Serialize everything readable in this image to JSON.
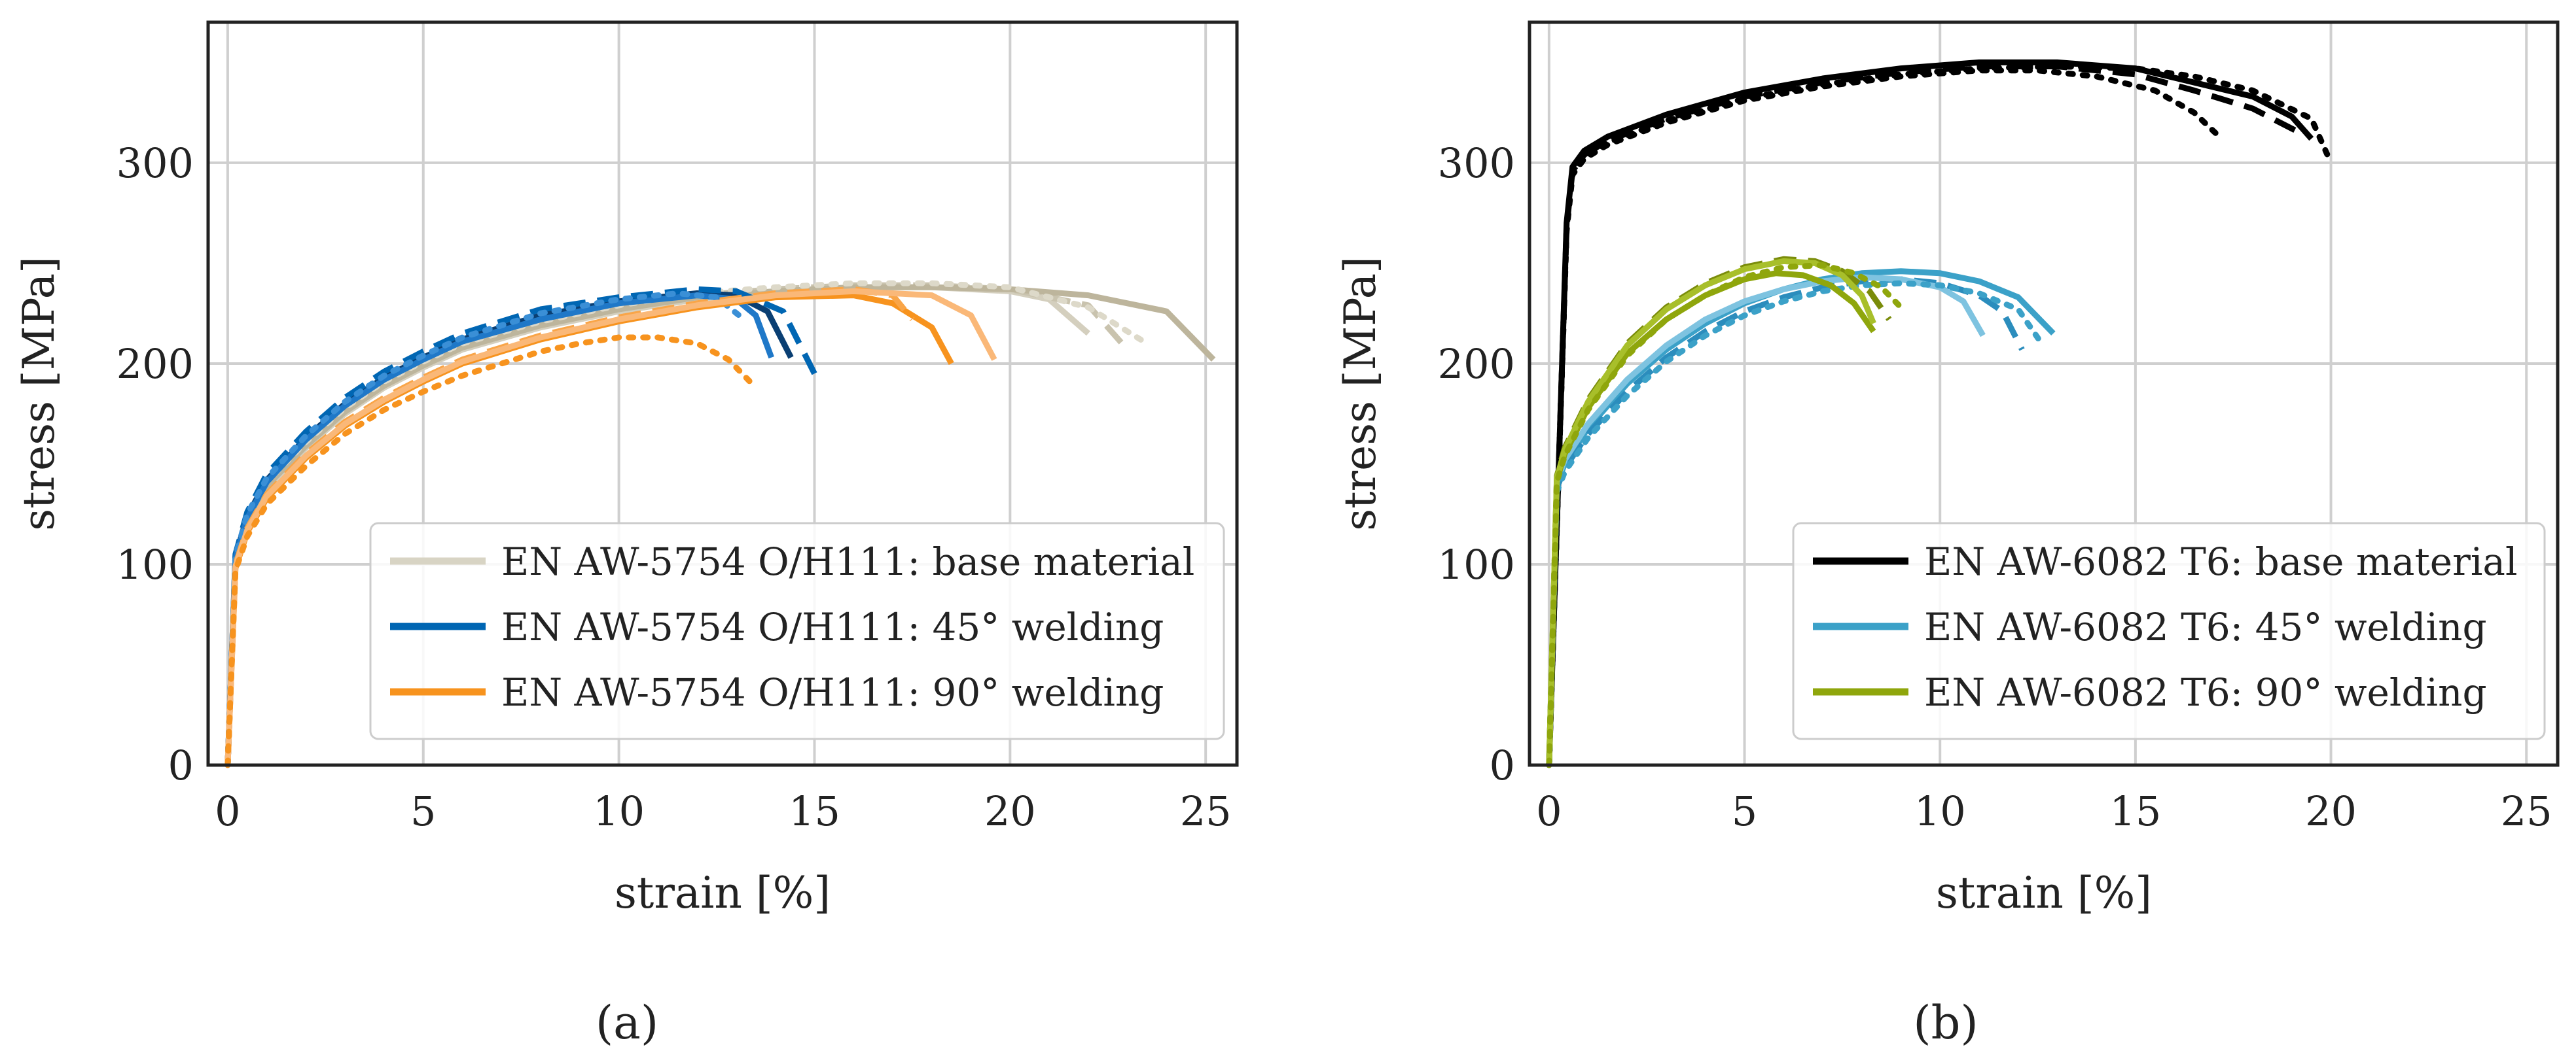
{
  "chart_data": [
    {
      "type": "line",
      "panel_caption": "(a)",
      "xlabel": "strain [%]",
      "ylabel": "stress [MPa]",
      "xlim": [
        -0.5,
        25.8
      ],
      "ylim": [
        0,
        370
      ],
      "xticks": [
        0,
        5,
        10,
        15,
        20,
        25
      ],
      "yticks": [
        0,
        100,
        200,
        300
      ],
      "grid": true,
      "legend_position": "bottom-right",
      "legend": [
        {
          "label": "EN AW-5754 O/H111: base material",
          "color": "#d8d4c4"
        },
        {
          "label": "EN AW-5754 O/H111: 45° welding",
          "color": "#0066b3"
        },
        {
          "label": "EN AW-5754 O/H111: 90° welding",
          "color": "#f7931e"
        }
      ],
      "series": [
        {
          "name": "base material A",
          "color": "#d4cfbe",
          "dash": "solid",
          "x": [
            0,
            0.2,
            0.5,
            1,
            2,
            3,
            4,
            5,
            6,
            8,
            10,
            12,
            14,
            16,
            18,
            20,
            21,
            22
          ],
          "y": [
            0,
            100,
            120,
            138,
            158,
            175,
            188,
            198,
            207,
            218,
            226,
            232,
            236,
            238,
            238,
            236,
            232,
            215
          ]
        },
        {
          "name": "base material B",
          "color": "#c9c3ae",
          "dash": "dashed",
          "x": [
            0,
            0.2,
            0.5,
            1,
            2,
            3,
            4,
            5,
            6,
            8,
            10,
            12,
            14,
            16,
            18,
            20,
            22,
            23
          ],
          "y": [
            0,
            102,
            122,
            140,
            160,
            177,
            190,
            200,
            209,
            220,
            228,
            234,
            237,
            239,
            239,
            237,
            229,
            207
          ]
        },
        {
          "name": "base material C",
          "color": "#bdb59c",
          "dash": "solid",
          "x": [
            0,
            0.2,
            0.5,
            1,
            2,
            3,
            4,
            5,
            6,
            8,
            10,
            12,
            14,
            16,
            18,
            20,
            22,
            24,
            25.2
          ],
          "y": [
            0,
            101,
            121,
            139,
            159,
            176,
            189,
            199,
            208,
            219,
            227,
            233,
            236,
            238,
            238,
            237,
            234,
            226,
            202
          ]
        },
        {
          "name": "base material D",
          "color": "#ddd9c9",
          "dash": "dotted",
          "x": [
            0,
            0.2,
            0.5,
            1,
            2,
            3,
            4,
            5,
            6,
            8,
            10,
            12,
            14,
            16,
            18,
            20,
            22,
            23.5
          ],
          "y": [
            0,
            103,
            123,
            141,
            161,
            178,
            191,
            201,
            210,
            221,
            229,
            235,
            238,
            240,
            240,
            238,
            228,
            210
          ]
        },
        {
          "name": "45 welding A",
          "color": "#0a3f73",
          "dash": "solid",
          "x": [
            0,
            0.2,
            0.5,
            1,
            2,
            3,
            4,
            5,
            6,
            8,
            10,
            12,
            13,
            13.8,
            14.4
          ],
          "y": [
            0,
            104,
            124,
            142,
            163,
            180,
            193,
            203,
            212,
            224,
            231,
            235,
            234,
            226,
            203
          ]
        },
        {
          "name": "45 welding B",
          "color": "#0066b3",
          "dash": "dashed",
          "x": [
            0,
            0.2,
            0.5,
            1,
            2,
            3,
            4,
            5,
            6,
            8,
            10,
            12,
            13,
            14.2,
            15
          ],
          "y": [
            0,
            105,
            126,
            145,
            166,
            183,
            196,
            206,
            215,
            227,
            233,
            237,
            236,
            226,
            195
          ]
        },
        {
          "name": "45 welding C",
          "color": "#1f78c8",
          "dash": "solid",
          "x": [
            0,
            0.2,
            0.5,
            1,
            2,
            3,
            4,
            5,
            6,
            8,
            10,
            12,
            13,
            13.5,
            13.9
          ],
          "y": [
            0,
            103,
            123,
            141,
            162,
            179,
            192,
            202,
            211,
            222,
            230,
            234,
            232,
            224,
            203
          ]
        },
        {
          "name": "45 welding D",
          "color": "#3a8fd6",
          "dash": "dotted",
          "x": [
            0,
            0.2,
            0.5,
            1,
            2,
            3,
            4,
            5,
            6,
            8,
            10,
            11.5,
            12.5,
            13.2
          ],
          "y": [
            0,
            104,
            125,
            143,
            164,
            181,
            194,
            204,
            213,
            225,
            232,
            235,
            233,
            222
          ]
        },
        {
          "name": "90 welding A",
          "color": "#f7931e",
          "dash": "solid",
          "x": [
            0,
            0.2,
            0.5,
            1,
            2,
            3,
            4,
            5,
            6,
            8,
            10,
            12,
            14,
            16,
            17,
            18,
            18.5
          ],
          "y": [
            0,
            98,
            116,
            133,
            153,
            169,
            181,
            191,
            200,
            212,
            221,
            228,
            233,
            234,
            230,
            218,
            200
          ]
        },
        {
          "name": "90 welding B",
          "color": "#f9a548",
          "dash": "dashed",
          "x": [
            0,
            0.2,
            0.5,
            1,
            2,
            3,
            4,
            5,
            6,
            8,
            10,
            12,
            14,
            16,
            17,
            17.5
          ],
          "y": [
            0,
            100,
            118,
            135,
            155,
            171,
            183,
            193,
            202,
            214,
            223,
            230,
            235,
            237,
            234,
            222
          ]
        },
        {
          "name": "90 welding C",
          "color": "#fab878",
          "dash": "solid",
          "x": [
            0,
            0.2,
            0.5,
            1,
            2,
            3,
            4,
            5,
            6,
            8,
            10,
            12,
            14,
            16,
            18,
            19,
            19.6
          ],
          "y": [
            0,
            99,
            117,
            134,
            154,
            170,
            182,
            192,
            201,
            213,
            222,
            229,
            234,
            236,
            234,
            224,
            202
          ]
        },
        {
          "name": "90 welding D",
          "color": "#f7931e",
          "dash": "dotted",
          "x": [
            0,
            0.2,
            0.5,
            1,
            2,
            3,
            4,
            5,
            6,
            8,
            9,
            10,
            11,
            12,
            12.8,
            13.4
          ],
          "y": [
            0,
            97,
            114,
            130,
            149,
            165,
            177,
            186,
            194,
            206,
            210,
            213,
            213,
            210,
            202,
            190
          ]
        }
      ]
    },
    {
      "type": "line",
      "panel_caption": "(b)",
      "xlabel": "strain [%]",
      "ylabel": "stress [MPa]",
      "xlim": [
        -0.5,
        25.8
      ],
      "ylim": [
        0,
        370
      ],
      "xticks": [
        0,
        5,
        10,
        15,
        20,
        25
      ],
      "yticks": [
        0,
        100,
        200,
        300
      ],
      "grid": true,
      "legend_position": "bottom-right",
      "legend": [
        {
          "label": "EN AW-6082 T6: base material",
          "color": "#000000"
        },
        {
          "label": "EN AW-6082 T6: 45° welding",
          "color": "#3ba1c8"
        },
        {
          "label": "EN AW-6082 T6: 90° welding",
          "color": "#8fa60c"
        }
      ],
      "series": [
        {
          "name": "base material A",
          "color": "#000000",
          "dash": "solid",
          "x": [
            0,
            0.3,
            0.45,
            0.6,
            0.9,
            1.5,
            3,
            5,
            7,
            9,
            11,
            13,
            15,
            16.5,
            18,
            19,
            19.5
          ],
          "y": [
            0,
            180,
            270,
            298,
            306,
            313,
            324,
            335,
            342,
            347,
            350,
            350,
            347,
            340,
            333,
            323,
            312
          ]
        },
        {
          "name": "base material B",
          "color": "#000000",
          "dash": "dashed",
          "x": [
            0,
            0.3,
            0.45,
            0.6,
            0.9,
            1.5,
            3,
            5,
            7,
            9,
            11,
            13,
            15,
            16.5,
            18,
            19.3
          ],
          "y": [
            0,
            180,
            268,
            296,
            304,
            311,
            322,
            333,
            340,
            345,
            348,
            348,
            344,
            336,
            327,
            314
          ]
        },
        {
          "name": "base material C",
          "color": "#000000",
          "dash": "dotted",
          "x": [
            0,
            0.3,
            0.45,
            0.6,
            0.9,
            1.5,
            3,
            5,
            7,
            9,
            11,
            12.5,
            14,
            15.5,
            16.5,
            17.2
          ],
          "y": [
            0,
            178,
            266,
            294,
            302,
            309,
            320,
            331,
            338,
            343,
            346,
            346,
            343,
            336,
            325,
            312
          ]
        },
        {
          "name": "base material D",
          "color": "#000000",
          "dash": "dotted",
          "x": [
            0,
            0.3,
            0.45,
            0.6,
            0.9,
            1.5,
            3,
            5,
            7,
            9,
            11,
            13,
            15,
            16.5,
            18,
            19.5,
            20
          ],
          "y": [
            0,
            179,
            267,
            295,
            303,
            310,
            321,
            332,
            339,
            344,
            347,
            348,
            347,
            343,
            336,
            322,
            300
          ]
        },
        {
          "name": "45 welding A",
          "color": "#3ba1c8",
          "dash": "solid",
          "x": [
            0,
            0.2,
            0.4,
            1,
            2,
            3,
            4,
            5,
            6,
            7,
            8,
            9,
            10,
            11,
            12,
            12.9
          ],
          "y": [
            0,
            140,
            150,
            168,
            190,
            207,
            220,
            230,
            237,
            242,
            245,
            246,
            245,
            241,
            233,
            215
          ]
        },
        {
          "name": "45 welding B",
          "color": "#2b8dbd",
          "dash": "dashed",
          "x": [
            0,
            0.2,
            0.4,
            1,
            2,
            3,
            4,
            5,
            6,
            7,
            8,
            9,
            10,
            11,
            11.6,
            12.1
          ],
          "y": [
            0,
            138,
            148,
            165,
            186,
            203,
            216,
            226,
            233,
            238,
            241,
            242,
            240,
            234,
            226,
            207
          ]
        },
        {
          "name": "45 welding C",
          "color": "#7ec3e0",
          "dash": "solid",
          "x": [
            0,
            0.2,
            0.4,
            1,
            2,
            3,
            4,
            5,
            6,
            7,
            8,
            9,
            10,
            10.6,
            11.1
          ],
          "y": [
            0,
            141,
            152,
            170,
            192,
            209,
            222,
            231,
            237,
            241,
            243,
            242,
            238,
            231,
            214
          ]
        },
        {
          "name": "45 welding D",
          "color": "#3ba1c8",
          "dash": "dotted",
          "x": [
            0,
            0.2,
            0.4,
            1,
            2,
            3,
            4,
            5,
            6,
            7,
            8,
            9,
            10,
            11,
            12,
            12.6
          ],
          "y": [
            0,
            136,
            146,
            163,
            184,
            201,
            214,
            224,
            231,
            236,
            239,
            240,
            239,
            235,
            227,
            210
          ]
        },
        {
          "name": "90 welding A",
          "color": "#8fa60c",
          "dash": "solid",
          "x": [
            0,
            0.2,
            0.4,
            1,
            2,
            3,
            4,
            5,
            5.8,
            6.5,
            7.2,
            7.8,
            8.3
          ],
          "y": [
            0,
            142,
            155,
            178,
            205,
            222,
            234,
            242,
            245,
            244,
            239,
            230,
            216
          ]
        },
        {
          "name": "90 welding B",
          "color": "#7a8c0a",
          "dash": "dashed",
          "x": [
            0,
            0.2,
            0.4,
            1,
            2,
            3,
            4,
            5,
            6,
            6.8,
            7.5,
            8.2,
            8.7
          ],
          "y": [
            0,
            144,
            158,
            182,
            210,
            228,
            240,
            248,
            252,
            251,
            246,
            236,
            222
          ]
        },
        {
          "name": "90 welding C",
          "color": "#a8bf2a",
          "dash": "solid",
          "x": [
            0,
            0.2,
            0.4,
            1,
            2,
            3,
            4,
            5,
            6,
            6.8,
            7.5,
            8,
            8.3
          ],
          "y": [
            0,
            143,
            157,
            181,
            209,
            227,
            239,
            247,
            251,
            250,
            244,
            234,
            220
          ]
        },
        {
          "name": "90 welding D",
          "color": "#8fa60c",
          "dash": "dotted",
          "x": [
            0,
            0.2,
            0.4,
            1,
            2,
            3,
            4,
            5,
            6,
            7,
            7.8,
            8.5,
            9
          ],
          "y": [
            0,
            141,
            154,
            177,
            204,
            222,
            234,
            243,
            248,
            249,
            245,
            238,
            228
          ]
        }
      ]
    }
  ]
}
